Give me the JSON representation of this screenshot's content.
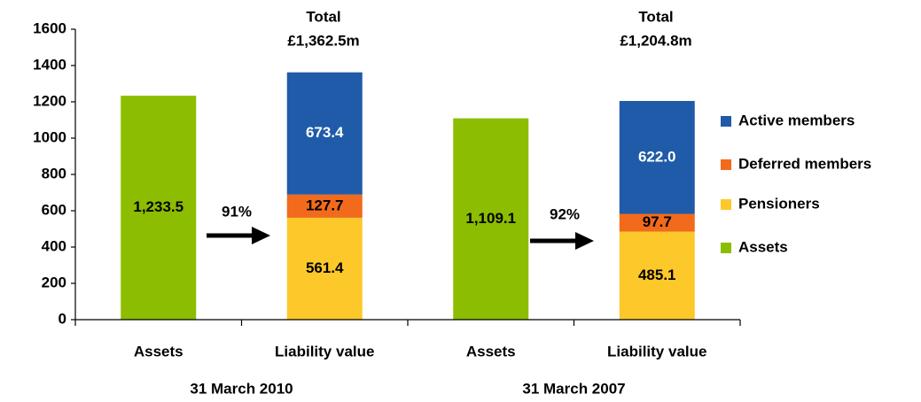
{
  "chart_data": {
    "type": "stacked_bar",
    "categories": [
      "Assets",
      "Liability value",
      "Assets",
      "Liability value"
    ],
    "groups": [
      "31 March 2010",
      "31 March 2007"
    ],
    "series": [
      {
        "name": "Active members",
        "color": "#1f5ba8",
        "label_color": "#ffffff",
        "values": [
          null,
          673.4,
          null,
          622.0
        ],
        "value_labels": [
          null,
          "673.4",
          null,
          "622.0"
        ]
      },
      {
        "name": "Deferred members",
        "color": "#f26a1b",
        "label_color": "#000000",
        "values": [
          null,
          127.7,
          null,
          97.7
        ],
        "value_labels": [
          null,
          "127.7",
          null,
          "97.7"
        ]
      },
      {
        "name": "Pensioners",
        "color": "#fdc82a",
        "label_color": "#000000",
        "values": [
          null,
          561.4,
          null,
          485.1
        ],
        "value_labels": [
          null,
          "561.4",
          null,
          "485.1"
        ]
      },
      {
        "name": "Assets",
        "color": "#8cbd00",
        "label_color": "#000000",
        "values": [
          1233.5,
          null,
          1109.1,
          null
        ],
        "value_labels": [
          "1,233.5",
          null,
          "1,109.1",
          null
        ]
      }
    ],
    "annotations": [
      "Total",
      "£1,362.5m",
      "91%",
      "Total",
      "£1,204.8m",
      "92%"
    ],
    "ylim": [
      0,
      1600
    ],
    "yticks": [
      0,
      200,
      400,
      600,
      800,
      1000,
      1200,
      1400,
      1600
    ],
    "legend": "right"
  }
}
